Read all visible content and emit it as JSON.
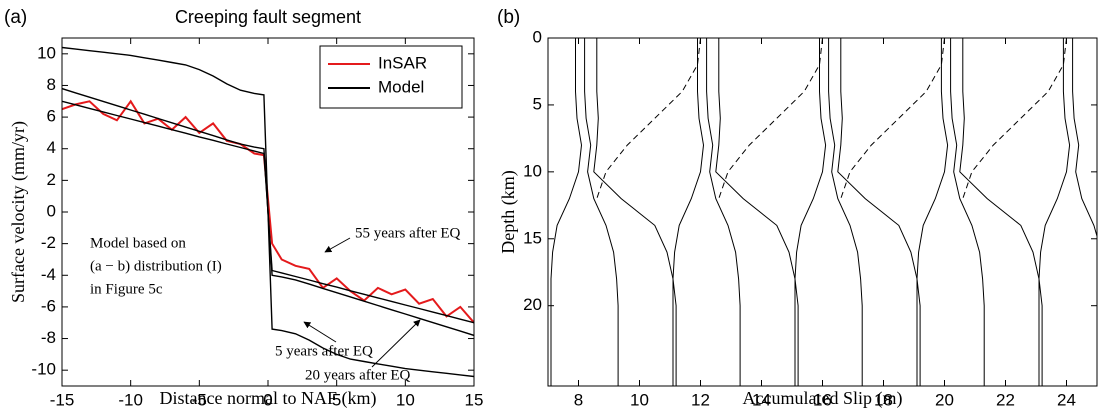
{
  "chart_data": [
    {
      "type": "line",
      "panel_label": "(a)",
      "title": "Creeping fault segment",
      "x_label": "Distance normal to NAF (km)",
      "y_label": "Surface velocity (mm/yr)",
      "x": [
        -15,
        -14,
        -13,
        -12,
        -11,
        -10,
        -9,
        -8,
        -7,
        -6,
        -5,
        -4,
        -3,
        -2,
        -1,
        -0.3,
        0.3,
        1,
        2,
        3,
        4,
        5,
        6,
        7,
        8,
        9,
        10,
        11,
        12,
        13,
        14,
        15
      ],
      "xlim": [
        -15,
        15
      ],
      "xticks": [
        -15,
        -10,
        -5,
        0,
        5,
        10,
        15
      ],
      "ylim": [
        -11,
        11
      ],
      "yticks": [
        -10,
        -8,
        -6,
        -4,
        -2,
        0,
        2,
        4,
        6,
        8,
        10
      ],
      "legend": "northeast",
      "series": [
        {
          "name": "InSAR",
          "color": "#e41a1c",
          "values": [
            6.5,
            6.8,
            7.0,
            6.2,
            5.8,
            7.0,
            5.6,
            5.9,
            5.2,
            6.0,
            5.0,
            5.6,
            4.5,
            4.3,
            3.7,
            3.6,
            -2.0,
            -3.0,
            -3.4,
            -3.6,
            -4.8,
            -4.2,
            -5.0,
            -5.6,
            -4.8,
            -5.2,
            -4.9,
            -5.8,
            -5.5,
            -6.6,
            -6.0,
            -7.0
          ]
        },
        {
          "name": "Model",
          "color": "#000000",
          "values": [
            10.4,
            10.3,
            10.2,
            10.1,
            10.0,
            9.9,
            9.75,
            9.6,
            9.45,
            9.3,
            9.0,
            8.6,
            8.1,
            7.7,
            7.5,
            7.4,
            -7.4,
            -7.5,
            -7.7,
            -8.1,
            -8.6,
            -9.0,
            -9.3,
            -9.45,
            -9.6,
            -9.75,
            -9.9,
            -10.0,
            -10.1,
            -10.2,
            -10.3,
            -10.4
          ]
        },
        {
          "color": "#000000",
          "values": [
            7.8,
            7.53,
            7.26,
            6.99,
            6.72,
            6.45,
            6.18,
            5.91,
            5.64,
            5.37,
            5.1,
            4.83,
            4.56,
            4.29,
            4.1,
            4.0,
            -4.0,
            -4.1,
            -4.29,
            -4.56,
            -4.83,
            -5.1,
            -5.37,
            -5.64,
            -5.91,
            -6.18,
            -6.45,
            -6.72,
            -6.99,
            -7.26,
            -7.53,
            -7.8
          ]
        },
        {
          "color": "#000000",
          "values": [
            7.0,
            6.78,
            6.55,
            6.33,
            6.1,
            5.88,
            5.65,
            5.43,
            5.2,
            4.98,
            4.75,
            4.53,
            4.3,
            4.08,
            3.85,
            3.7,
            -3.7,
            -3.85,
            -4.08,
            -4.3,
            -4.53,
            -4.75,
            -4.98,
            -5.2,
            -5.43,
            -5.65,
            -5.88,
            -6.1,
            -6.33,
            -6.55,
            -6.78,
            -7.0
          ]
        }
      ],
      "annotations": [
        "Model based on",
        "(a − b) distribution (I)",
        "in Figure 5c",
        "55 years after EQ",
        "5 years after EQ",
        "20 years after EQ"
      ]
    },
    {
      "type": "profile",
      "panel_label": "(b)",
      "x_label": "Accumulated Slip (m)",
      "y_label": "Depth (km)",
      "xlim": [
        7,
        25
      ],
      "xticks": [
        8,
        10,
        12,
        14,
        16,
        18,
        20,
        22,
        24
      ],
      "ylim": [
        0,
        26
      ],
      "yticks": [
        0,
        5,
        10,
        15,
        20
      ],
      "y_inverted": true,
      "depths": [
        0,
        2,
        4,
        6,
        8,
        10,
        12,
        14,
        16,
        18,
        20,
        22,
        24,
        26
      ],
      "curves": [
        {
          "dashed": false,
          "values": [
            7.9,
            7.9,
            7.9,
            7.95,
            8.1,
            8.0,
            7.7,
            7.3,
            7.15,
            7.1,
            7.1,
            7.1,
            7.1,
            7.1
          ]
        },
        {
          "dashed": false,
          "values": [
            8.2,
            8.2,
            8.2,
            8.25,
            8.4,
            8.3,
            8.5,
            8.9,
            9.15,
            9.25,
            9.3,
            9.3,
            9.3,
            9.3
          ]
        },
        {
          "dashed": false,
          "values": [
            8.6,
            8.6,
            8.6,
            8.65,
            8.6,
            8.5,
            9.4,
            10.5,
            10.9,
            11.1,
            11.2,
            11.2,
            11.2,
            11.2
          ]
        },
        {
          "dashed": true,
          "values": [
            12.0,
            11.9,
            11.4,
            10.5,
            9.6,
            8.9,
            8.6,
            null,
            null,
            null,
            null,
            null,
            null,
            null
          ]
        },
        {
          "dashed": false,
          "values": [
            11.9,
            11.9,
            11.9,
            11.95,
            12.1,
            12.0,
            11.7,
            11.3,
            11.15,
            11.1,
            11.1,
            11.1,
            11.1,
            11.1
          ]
        },
        {
          "dashed": false,
          "values": [
            12.2,
            12.2,
            12.2,
            12.25,
            12.4,
            12.3,
            12.5,
            12.9,
            13.15,
            13.25,
            13.3,
            13.3,
            13.3,
            13.3
          ]
        },
        {
          "dashed": false,
          "values": [
            12.6,
            12.6,
            12.6,
            12.65,
            12.6,
            12.5,
            13.4,
            14.5,
            14.9,
            15.1,
            15.2,
            15.2,
            15.2,
            15.2
          ]
        },
        {
          "dashed": true,
          "values": [
            16.0,
            15.9,
            15.4,
            14.5,
            13.6,
            12.9,
            12.6,
            null,
            null,
            null,
            null,
            null,
            null,
            null
          ]
        },
        {
          "dashed": false,
          "values": [
            15.9,
            15.9,
            15.9,
            15.95,
            16.1,
            16.0,
            15.7,
            15.3,
            15.15,
            15.1,
            15.1,
            15.1,
            15.1,
            15.1
          ]
        },
        {
          "dashed": false,
          "values": [
            16.2,
            16.2,
            16.2,
            16.25,
            16.4,
            16.3,
            16.5,
            16.9,
            17.15,
            17.25,
            17.3,
            17.3,
            17.3,
            17.3
          ]
        },
        {
          "dashed": false,
          "values": [
            16.6,
            16.6,
            16.6,
            16.65,
            16.6,
            16.5,
            17.4,
            18.5,
            18.9,
            19.1,
            19.2,
            19.2,
            19.2,
            19.2
          ]
        },
        {
          "dashed": true,
          "values": [
            20.0,
            19.9,
            19.4,
            18.5,
            17.6,
            16.9,
            16.6,
            null,
            null,
            null,
            null,
            null,
            null,
            null
          ]
        },
        {
          "dashed": false,
          "values": [
            19.9,
            19.9,
            19.9,
            19.95,
            20.1,
            20.0,
            19.7,
            19.3,
            19.15,
            19.1,
            19.1,
            19.1,
            19.1,
            19.1
          ]
        },
        {
          "dashed": false,
          "values": [
            20.2,
            20.2,
            20.2,
            20.25,
            20.4,
            20.3,
            20.5,
            20.9,
            21.15,
            21.25,
            21.3,
            21.3,
            21.3,
            21.3
          ]
        },
        {
          "dashed": false,
          "values": [
            20.6,
            20.6,
            20.6,
            20.65,
            20.6,
            20.5,
            21.4,
            22.5,
            22.9,
            23.1,
            23.2,
            23.2,
            23.2,
            23.2
          ]
        },
        {
          "dashed": true,
          "values": [
            24.0,
            23.9,
            23.4,
            22.5,
            21.6,
            20.9,
            20.6,
            null,
            null,
            null,
            null,
            null,
            null,
            null
          ]
        },
        {
          "dashed": false,
          "values": [
            23.9,
            23.9,
            23.9,
            23.95,
            24.1,
            24.0,
            23.7,
            23.3,
            23.15,
            23.1,
            23.1,
            23.1,
            23.1,
            23.1
          ]
        },
        {
          "dashed": false,
          "values": [
            24.2,
            24.2,
            24.2,
            24.25,
            24.4,
            24.3,
            24.5,
            24.9,
            25.15,
            25.25,
            25.3,
            25.3,
            25.3,
            25.3
          ]
        }
      ]
    }
  ]
}
